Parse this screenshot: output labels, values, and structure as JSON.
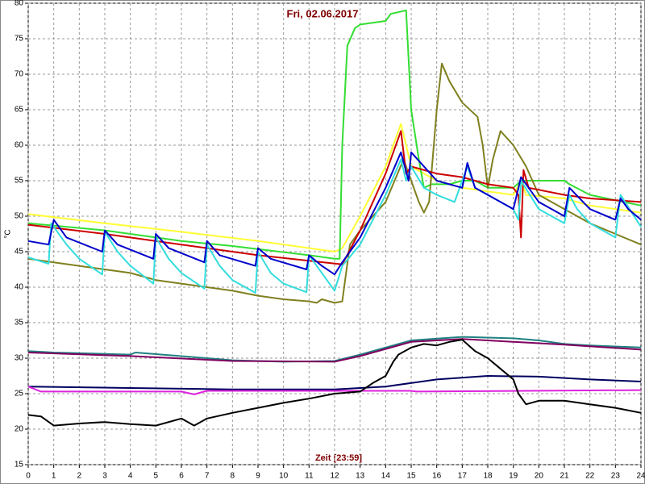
{
  "chart_data": {
    "type": "line",
    "title": "Fri, 02.06.2017",
    "x_label": "Zeit [23:59]",
    "y_label": "°C",
    "xlim": [
      0,
      24
    ],
    "xticks": [
      0,
      1,
      2,
      3,
      4,
      5,
      6,
      7,
      8,
      9,
      10,
      11,
      12,
      13,
      14,
      15,
      16,
      17,
      18,
      19,
      20,
      21,
      22,
      23,
      24
    ],
    "ylim": [
      15,
      80
    ],
    "yticks": [
      15,
      20,
      25,
      30,
      35,
      40,
      45,
      50,
      55,
      60,
      65,
      70,
      75,
      80
    ],
    "grid": true,
    "series": [
      {
        "color": "#ffff33",
        "x": [
          0,
          3,
          6,
          9,
          12,
          12.3,
          13,
          14,
          14.6,
          14.8,
          15,
          16,
          17,
          18,
          19,
          19.3,
          19.5,
          21,
          22,
          24
        ],
        "values": [
          50.3,
          49,
          47.8,
          46.5,
          45,
          45.5,
          50,
          57,
          63,
          60,
          57,
          55,
          54,
          53.5,
          53,
          55,
          53,
          52.5,
          51.5,
          50.5
        ]
      },
      {
        "color": "#33dd33",
        "x": [
          0,
          3,
          6,
          8,
          11,
          12,
          12.2,
          12.3,
          12.5,
          12.8,
          13,
          14,
          14.2,
          14.8,
          15,
          15.3,
          15.5,
          15.8,
          16.5,
          17,
          17.5,
          18,
          19,
          19.3,
          21,
          21.2,
          22,
          24
        ],
        "values": [
          49,
          48,
          46.5,
          45.8,
          44.5,
          44,
          44,
          60,
          74,
          76.5,
          77,
          77.5,
          78.5,
          79,
          65,
          58,
          54,
          54.5,
          54.5,
          55,
          55,
          54,
          54,
          55,
          55,
          54.5,
          53,
          51.5
        ]
      },
      {
        "color": "#808020",
        "x": [
          0,
          1,
          2,
          3,
          4,
          5,
          6,
          7,
          8,
          9,
          10,
          11,
          11.3,
          11.5,
          12,
          12.3,
          12.6,
          13,
          14,
          14.7,
          15,
          15.3,
          15.5,
          15.7,
          16,
          16.2,
          16.5,
          17,
          17.6,
          17.8,
          18,
          18.2,
          18.5,
          19,
          19.5,
          20,
          21,
          22,
          23,
          24
        ],
        "values": [
          44,
          43.5,
          43,
          42.5,
          42,
          41,
          40.5,
          40,
          39.5,
          38.8,
          38.3,
          38,
          37.8,
          38.3,
          37.8,
          38,
          46,
          48,
          52,
          58,
          55,
          52,
          50.5,
          52,
          65,
          71.5,
          69,
          66,
          64,
          60,
          54,
          58,
          62,
          60,
          57,
          53,
          51,
          49,
          47.5,
          46
        ]
      },
      {
        "color": "#cc0000",
        "x": [
          0,
          3,
          6,
          9,
          12.3,
          13,
          14,
          14.6,
          14.8,
          15,
          16,
          17,
          18,
          19,
          19.2,
          19.3,
          19.4,
          19.6,
          21,
          22,
          24
        ],
        "values": [
          48.8,
          47.5,
          46,
          44.5,
          43.2,
          48,
          56,
          62,
          56,
          57,
          56,
          55.5,
          54.5,
          54,
          53,
          47,
          56.5,
          54,
          53,
          52.5,
          52
        ]
      },
      {
        "color": "#33dddd",
        "x": [
          0,
          0.8,
          0.9,
          1.5,
          2,
          2.9,
          3,
          3.5,
          4,
          4.9,
          5,
          5.5,
          6,
          6.9,
          7,
          7.5,
          8,
          8.9,
          9,
          9.5,
          10,
          10.9,
          11,
          11.5,
          12,
          12.3,
          13,
          14,
          14.6,
          14.8,
          15,
          15.5,
          16,
          16.7,
          17.2,
          17.5,
          18,
          19,
          19.2,
          19.3,
          20,
          21,
          21.2,
          21.5,
          22,
          23,
          23.2,
          24
        ],
        "values": [
          44.2,
          43.3,
          49,
          46,
          44,
          41.8,
          47.8,
          45,
          43,
          40.5,
          47,
          44,
          42,
          39.8,
          46,
          43,
          41,
          39.2,
          45,
          42,
          40.5,
          39.3,
          44.5,
          42,
          39.5,
          43,
          46,
          53,
          58,
          55,
          57,
          54,
          53,
          52,
          57,
          54,
          53,
          51,
          49.5,
          55,
          51,
          49,
          53,
          51,
          49,
          47,
          53,
          48.5
        ]
      },
      {
        "color": "#0000cc",
        "x": [
          0,
          0.8,
          1,
          1.5,
          2.9,
          3,
          3.5,
          4.9,
          5,
          5.5,
          6.9,
          7,
          7.5,
          8.9,
          9,
          9.5,
          10.9,
          11,
          11.5,
          12,
          12.3,
          13,
          14,
          14.6,
          14.9,
          15,
          16,
          17,
          17.2,
          17.5,
          19,
          19.3,
          20,
          21,
          21.2,
          22,
          23,
          23.2,
          23.5,
          24
        ],
        "values": [
          46.5,
          46,
          49.5,
          47,
          45,
          48,
          46,
          44,
          47.5,
          45.5,
          43.5,
          46.5,
          44.5,
          43,
          45.5,
          44,
          42.5,
          44.5,
          43,
          41.8,
          43.5,
          47,
          54,
          59,
          55,
          59,
          55,
          54,
          57.5,
          54,
          51,
          55.5,
          52,
          50,
          54,
          51,
          49.5,
          52.5,
          51,
          49.5
        ]
      },
      {
        "color": "#208080",
        "x": [
          0,
          1,
          4,
          4.2,
          7,
          8,
          10,
          12,
          13,
          14,
          15,
          17,
          19,
          20,
          21,
          22,
          24
        ],
        "values": [
          31,
          30.8,
          30.5,
          30.8,
          30,
          29.7,
          29.5,
          29.6,
          30.5,
          31.5,
          32.5,
          33,
          32.8,
          32.5,
          32,
          31.8,
          31.5
        ]
      },
      {
        "color": "#800060",
        "x": [
          0,
          4,
          8,
          12,
          13,
          14,
          15,
          17,
          19,
          21,
          24
        ],
        "values": [
          30.8,
          30.3,
          29.6,
          29.5,
          30.3,
          31.3,
          32.3,
          32.7,
          32.3,
          31.9,
          31.2
        ]
      },
      {
        "color": "#000060",
        "x": [
          0,
          4,
          8,
          12,
          14,
          16,
          18,
          20,
          22,
          24
        ],
        "values": [
          26,
          25.8,
          25.6,
          25.6,
          26,
          27,
          27.5,
          27.4,
          27,
          26.7
        ]
      },
      {
        "color": "#dd22dd",
        "x": [
          0,
          0.5,
          6,
          6.5,
          7,
          15,
          15.2,
          24
        ],
        "values": [
          26,
          25.3,
          25.3,
          24.9,
          25.4,
          25.4,
          25.3,
          25.5
        ]
      },
      {
        "color": "#000000",
        "x": [
          0,
          0.5,
          1,
          2,
          3,
          4,
          5,
          6,
          6.5,
          7,
          8,
          9,
          10,
          11,
          12,
          13,
          13.5,
          14,
          14.3,
          14.5,
          15,
          15.5,
          16,
          16.5,
          17,
          17.5,
          18,
          18.5,
          19,
          19.2,
          19.5,
          20,
          21,
          22,
          23,
          24
        ],
        "values": [
          22,
          21.8,
          20.5,
          20.8,
          21,
          20.7,
          20.5,
          21.5,
          20.5,
          21.5,
          22.3,
          23,
          23.7,
          24.3,
          25,
          25.3,
          26.5,
          27.5,
          29.5,
          30.5,
          31.5,
          32,
          31.8,
          32.3,
          32.6,
          31,
          30,
          28.5,
          27,
          25,
          23.5,
          24,
          24,
          23.5,
          23,
          22.3
        ]
      }
    ]
  }
}
